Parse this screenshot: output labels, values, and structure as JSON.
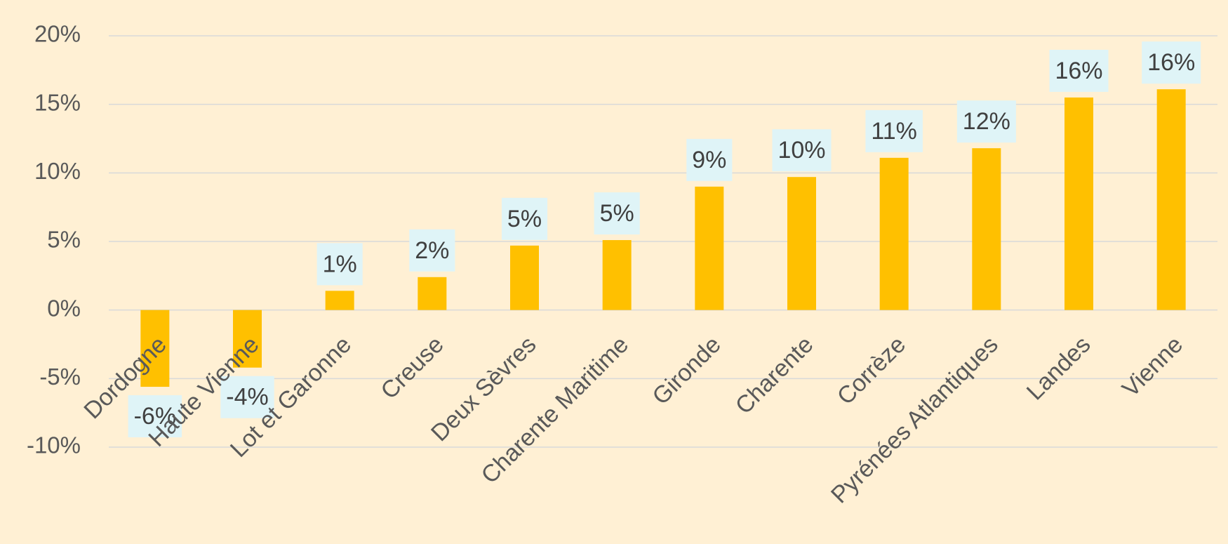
{
  "chart_data": {
    "type": "bar",
    "categories": [
      "Dordogne",
      "Haute Vienne",
      "Lot et Garonne",
      "Creuse",
      "Deux Sèvres",
      "Charente Maritime",
      "Gironde",
      "Charente",
      "Corrèze",
      "Pyrénées Atlantiques",
      "Landes",
      "Vienne"
    ],
    "values": [
      -5.6,
      -4.2,
      1.4,
      2.4,
      4.7,
      5.1,
      9.0,
      9.7,
      11.1,
      11.8,
      15.5,
      16.1
    ],
    "value_labels": [
      "-6%",
      "-4%",
      "1%",
      "2%",
      "5%",
      "5%",
      "9%",
      "10%",
      "11%",
      "12%",
      "16%",
      "16%"
    ],
    "color": "#ffc000",
    "ylim": [
      -10,
      20
    ],
    "yticks": [
      {
        "value": -10,
        "label": "-10%"
      },
      {
        "value": -5,
        "label": "-5%"
      },
      {
        "value": 0,
        "label": "0%"
      },
      {
        "value": 5,
        "label": "5%"
      },
      {
        "value": 10,
        "label": "10%"
      },
      {
        "value": 15,
        "label": "15%"
      },
      {
        "value": 20,
        "label": "20%"
      }
    ],
    "grid": true
  }
}
